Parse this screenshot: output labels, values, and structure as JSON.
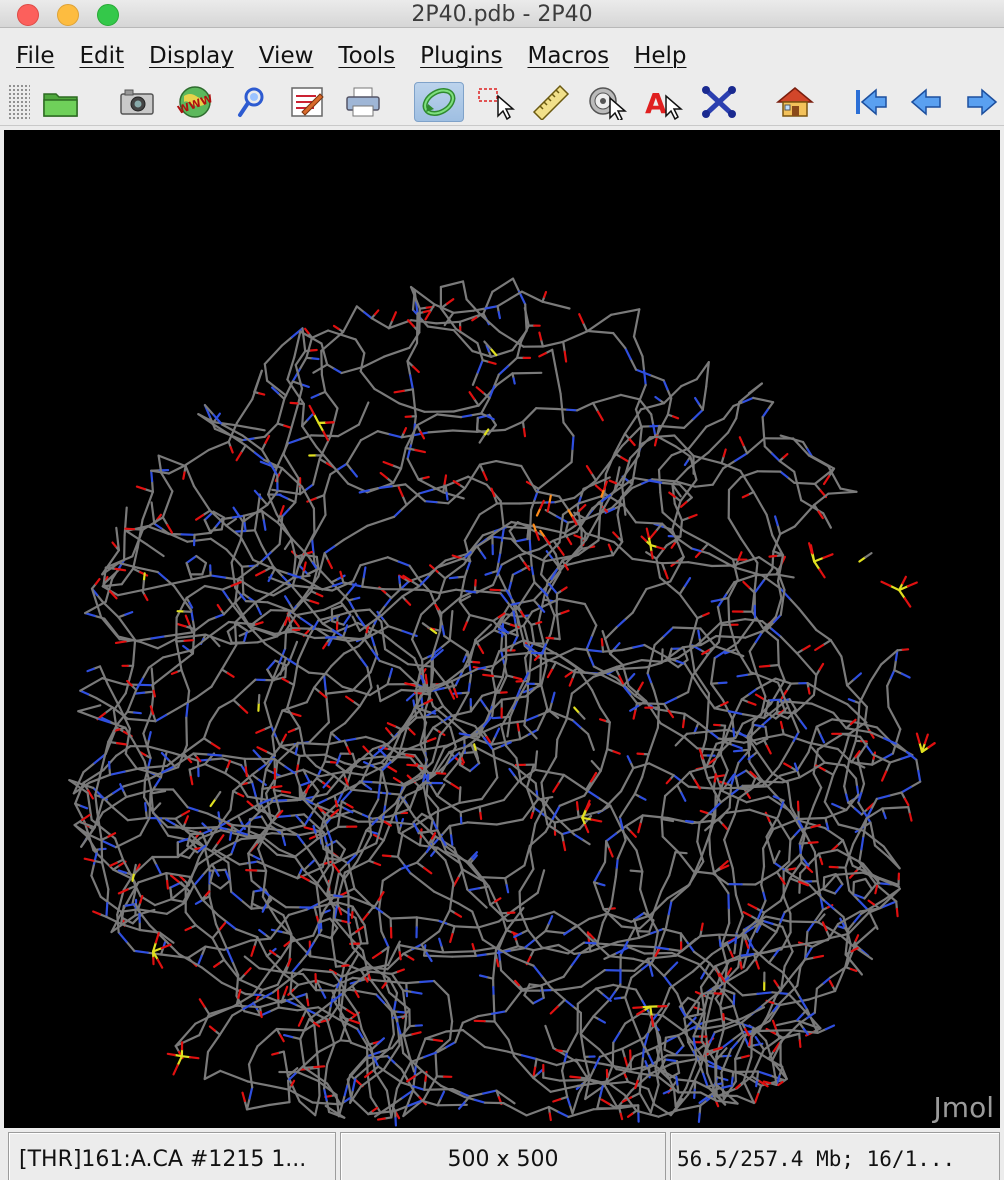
{
  "window": {
    "title": "2P40.pdb - 2P40",
    "controls": [
      "close-icon",
      "minimize-icon",
      "maximize-icon"
    ]
  },
  "menu": {
    "items": [
      "File",
      "Edit",
      "Display",
      "View",
      "Tools",
      "Plugins",
      "Macros",
      "Help"
    ]
  },
  "toolbar": {
    "buttons": [
      {
        "icon": "open-folder-icon"
      },
      {
        "icon": "camera-icon"
      },
      {
        "icon": "www-globe-icon"
      },
      {
        "icon": "script-editor-icon"
      },
      {
        "icon": "console-icon"
      },
      {
        "icon": "print-icon"
      },
      {
        "icon": "rotate-icon",
        "active": true
      },
      {
        "icon": "pick-icon"
      },
      {
        "icon": "measure-ruler-icon"
      },
      {
        "icon": "spin-icon"
      },
      {
        "icon": "label-icon"
      },
      {
        "icon": "move-atoms-icon"
      },
      {
        "icon": "home-icon"
      },
      {
        "icon": "first-frame-icon"
      },
      {
        "icon": "previous-frame-icon"
      },
      {
        "icon": "next-frame-icon"
      }
    ]
  },
  "viewer": {
    "logo": "Jmol",
    "background_color": "#000000",
    "atom_colors": {
      "carbon": "#7a7a7a",
      "nitrogen": "#2f4fe0",
      "oxygen": "#e01010",
      "sulfur": "#e0e020",
      "phosphorus": "#ff8c1a"
    }
  },
  "status": {
    "picked": "[THR]161:A.CA #1215 1...",
    "dimensions": "500 x 500",
    "memory": "56.5/257.4 Mb;  16/1..."
  }
}
